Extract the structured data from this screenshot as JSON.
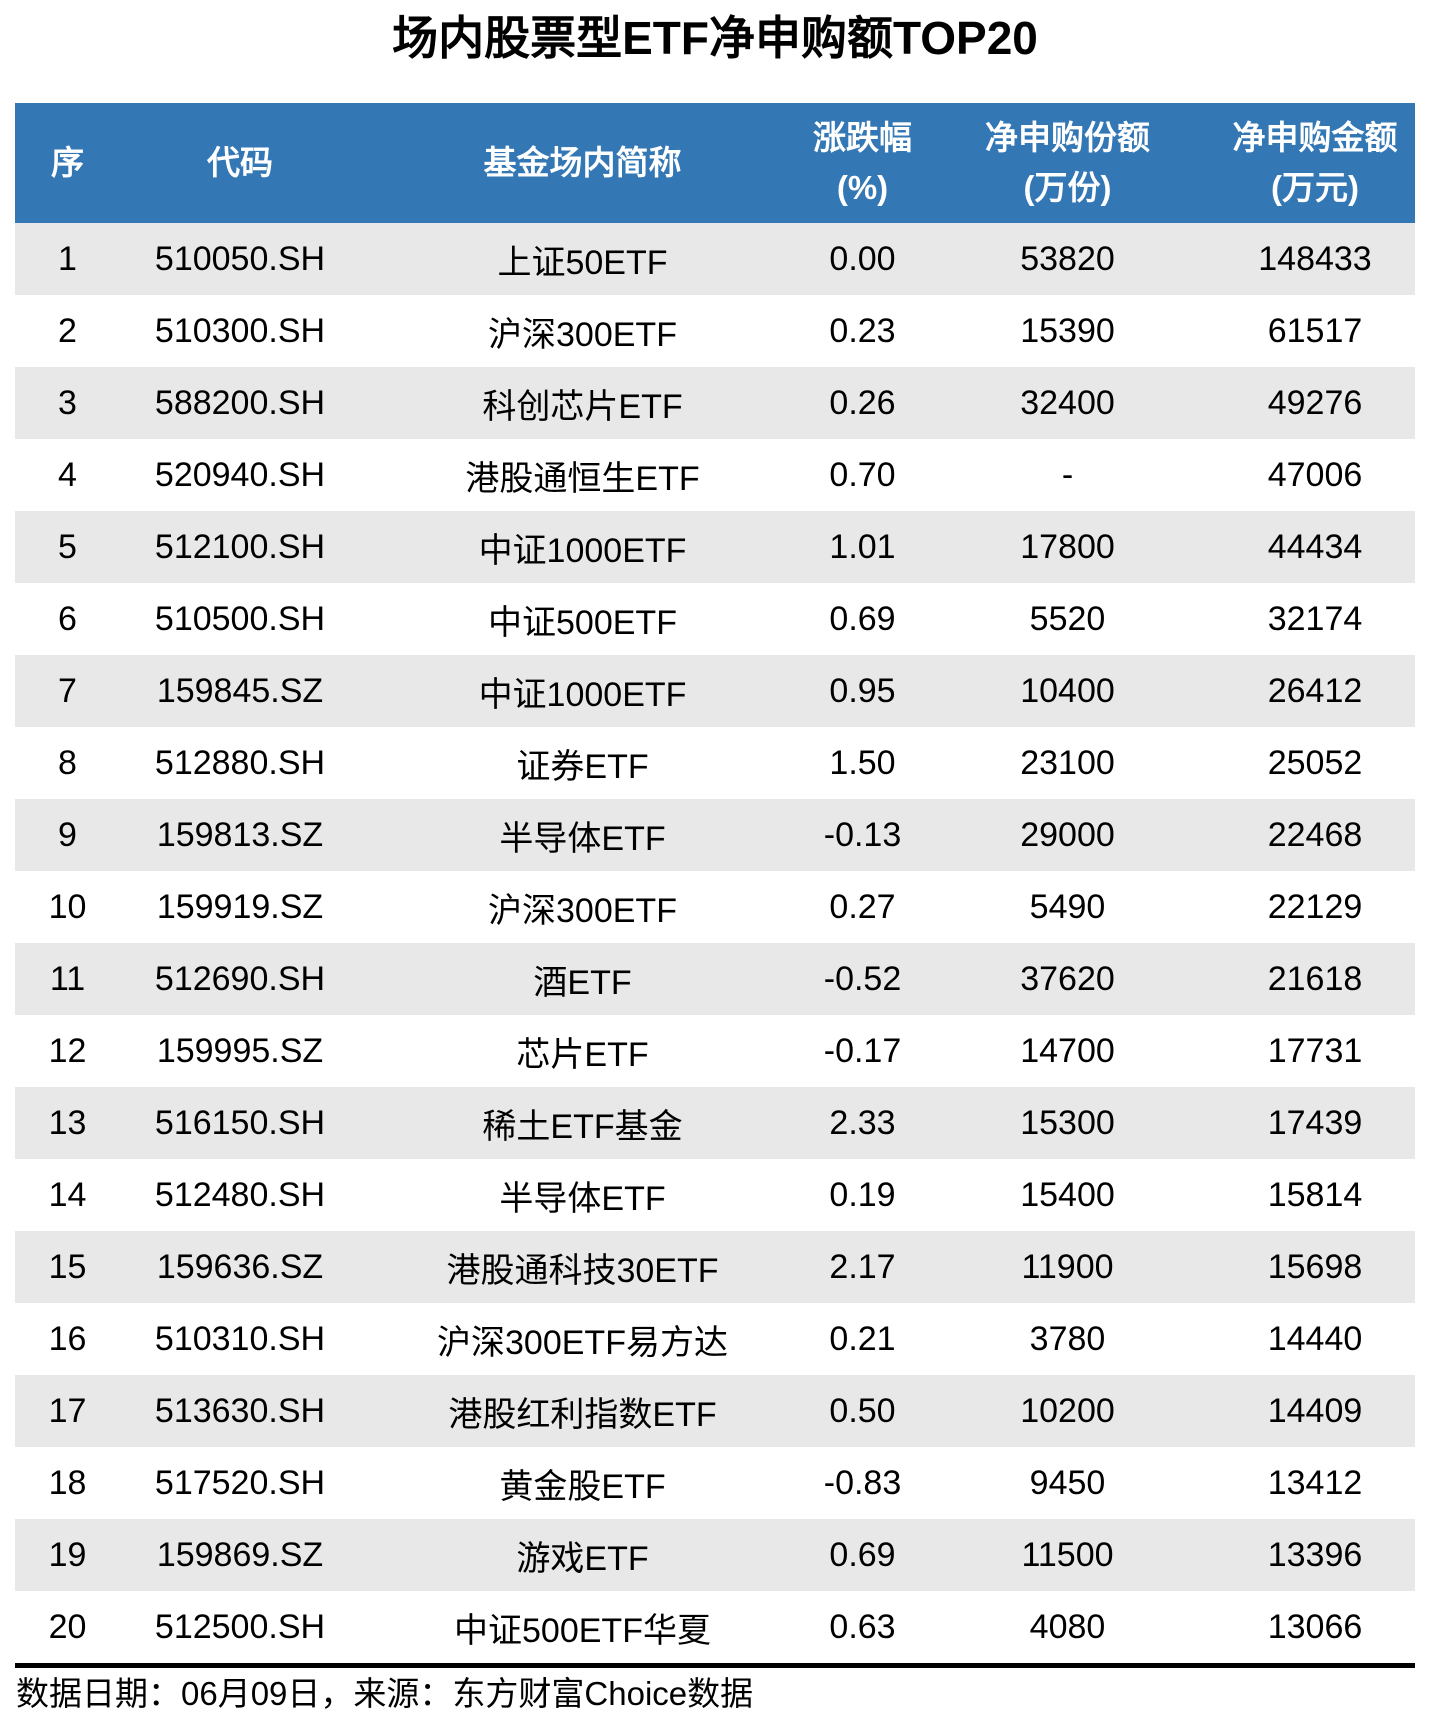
{
  "title": "场内股票型ETF净申购额TOP20",
  "table": {
    "headers": [
      {
        "line1": "序",
        "line2": ""
      },
      {
        "line1": "代码",
        "line2": ""
      },
      {
        "line1": "基金场内简称",
        "line2": ""
      },
      {
        "line1": "涨跌幅",
        "line2": "(%)"
      },
      {
        "line1": "净申购份额",
        "line2": "(万份)"
      },
      {
        "line1": "净申购金额",
        "line2": "(万元)"
      }
    ]
  },
  "footer": "数据日期：06月09日，来源：东方财富Choice数据",
  "colors": {
    "header_bg": "#3377B5",
    "header_text": "#FFFFFF",
    "row_alt_bg": "#E8E8E8",
    "row_bg": "#FFFFFF",
    "body_text": "#000000",
    "divider": "#000000"
  },
  "chart_data": {
    "type": "table",
    "title": "场内股票型ETF净申购额TOP20",
    "columns": [
      "序",
      "代码",
      "基金场内简称",
      "涨跌幅(%)",
      "净申购份额(万份)",
      "净申购金额(万元)"
    ],
    "rows": [
      [
        "1",
        "510050.SH",
        "上证50ETF",
        "0.00",
        "53820",
        "148433"
      ],
      [
        "2",
        "510300.SH",
        "沪深300ETF",
        "0.23",
        "15390",
        "61517"
      ],
      [
        "3",
        "588200.SH",
        "科创芯片ETF",
        "0.26",
        "32400",
        "49276"
      ],
      [
        "4",
        "520940.SH",
        "港股通恒生ETF",
        "0.70",
        "-",
        "47006"
      ],
      [
        "5",
        "512100.SH",
        "中证1000ETF",
        "1.01",
        "17800",
        "44434"
      ],
      [
        "6",
        "510500.SH",
        "中证500ETF",
        "0.69",
        "5520",
        "32174"
      ],
      [
        "7",
        "159845.SZ",
        "中证1000ETF",
        "0.95",
        "10400",
        "26412"
      ],
      [
        "8",
        "512880.SH",
        "证券ETF",
        "1.50",
        "23100",
        "25052"
      ],
      [
        "9",
        "159813.SZ",
        "半导体ETF",
        "-0.13",
        "29000",
        "22468"
      ],
      [
        "10",
        "159919.SZ",
        "沪深300ETF",
        "0.27",
        "5490",
        "22129"
      ],
      [
        "11",
        "512690.SH",
        "酒ETF",
        "-0.52",
        "37620",
        "21618"
      ],
      [
        "12",
        "159995.SZ",
        "芯片ETF",
        "-0.17",
        "14700",
        "17731"
      ],
      [
        "13",
        "516150.SH",
        "稀土ETF基金",
        "2.33",
        "15300",
        "17439"
      ],
      [
        "14",
        "512480.SH",
        "半导体ETF",
        "0.19",
        "15400",
        "15814"
      ],
      [
        "15",
        "159636.SZ",
        "港股通科技30ETF",
        "2.17",
        "11900",
        "15698"
      ],
      [
        "16",
        "510310.SH",
        "沪深300ETF易方达",
        "0.21",
        "3780",
        "14440"
      ],
      [
        "17",
        "513630.SH",
        "港股红利指数ETF",
        "0.50",
        "10200",
        "14409"
      ],
      [
        "18",
        "517520.SH",
        "黄金股ETF",
        "-0.83",
        "9450",
        "13412"
      ],
      [
        "19",
        "159869.SZ",
        "游戏ETF",
        "0.69",
        "11500",
        "13396"
      ],
      [
        "20",
        "512500.SH",
        "中证500ETF华夏",
        "0.63",
        "4080",
        "13066"
      ]
    ],
    "note": "数据日期：06月09日，来源：东方财富Choice数据",
    "layout": {
      "stripe": "odd-rows-gray",
      "cell_alignment": "center"
    }
  }
}
